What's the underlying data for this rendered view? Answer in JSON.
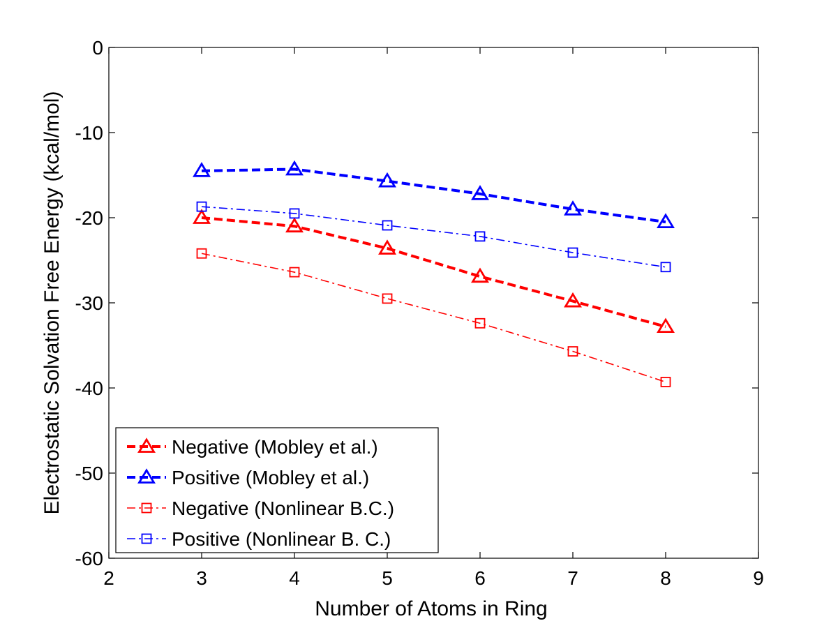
{
  "chart_data": {
    "type": "line",
    "title": "",
    "xlabel": "Number of Atoms in Ring",
    "ylabel": "Electrostatic Solvation Free Energy (kcal/mol)",
    "xlim": [
      2,
      9
    ],
    "ylim": [
      -60,
      0
    ],
    "x_ticks": [
      2,
      3,
      4,
      5,
      6,
      7,
      8,
      9
    ],
    "y_ticks": [
      0,
      -10,
      -20,
      -30,
      -40,
      -50,
      -60
    ],
    "grid": false,
    "legend_position": "bottom-left",
    "x": [
      3,
      4,
      5,
      6,
      7,
      8
    ],
    "series": [
      {
        "name": "Negative (Mobley et al.)",
        "values": [
          -20.0,
          -21.0,
          -23.6,
          -26.9,
          -29.8,
          -32.8
        ],
        "color": "#ff0000",
        "marker": "triangle",
        "line_style": "dashed"
      },
      {
        "name": "Positive (Mobley et al.)",
        "values": [
          -14.5,
          -14.3,
          -15.7,
          -17.2,
          -19.0,
          -20.5
        ],
        "color": "#0000ff",
        "marker": "triangle",
        "line_style": "dashed"
      },
      {
        "name": "Negative (Nonlinear B.C.)",
        "values": [
          -24.2,
          -26.4,
          -29.5,
          -32.4,
          -35.7,
          -39.3
        ],
        "color": "#ff0000",
        "marker": "square",
        "line_style": "dash-dot"
      },
      {
        "name": "Positive (Nonlinear B. C.)",
        "values": [
          -18.7,
          -19.5,
          -20.9,
          -22.2,
          -24.1,
          -25.8
        ],
        "color": "#0000ff",
        "marker": "square",
        "line_style": "dash-dot"
      }
    ]
  }
}
